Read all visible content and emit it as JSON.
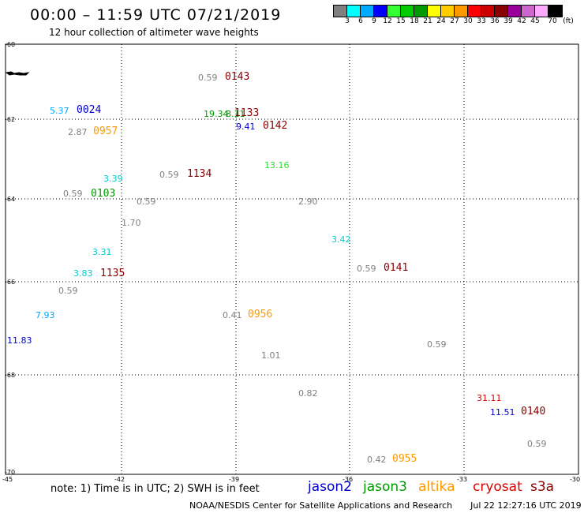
{
  "header": {
    "title": "00:00 – 11:59 UTC 07/21/2019",
    "subtitle": "12 hour collection of altimeter wave heights"
  },
  "color_scale": {
    "colors": [
      "#808080",
      "#00ffff",
      "#00aaff",
      "#0000ff",
      "#33ff33",
      "#00cc00",
      "#009900",
      "#ffff00",
      "#ffcc00",
      "#ff9900",
      "#ff0000",
      "#cc0000",
      "#880000",
      "#990099",
      "#cc66cc",
      "#ffaaff",
      "#000000"
    ],
    "labels": [
      "3",
      "6",
      "9",
      "12",
      "15",
      "18",
      "21",
      "24",
      "27",
      "30",
      "33",
      "36",
      "39",
      "42",
      "45",
      "70",
      "(ft)"
    ]
  },
  "axes": {
    "lat_labels": [
      "-60",
      "-62",
      "-64",
      "-66",
      "-68",
      "-70"
    ],
    "lon_labels": [
      "-45",
      "-42",
      "-39",
      "-36",
      "-33",
      "-30"
    ]
  },
  "observations": [
    {
      "text": "0.59",
      "color": "#808080"
    },
    {
      "text": "5.37",
      "color": "#00aaff"
    },
    {
      "text": "19.34",
      "color": "#009900"
    },
    {
      "text": "8.11",
      "color": "#009900"
    },
    {
      "text": "9.41",
      "color": "#0000cc"
    },
    {
      "text": "2.87",
      "color": "#808080"
    },
    {
      "text": "13.16",
      "color": "#33dd33"
    },
    {
      "text": "3.39",
      "color": "#00cccc"
    },
    {
      "text": "0.59",
      "color": "#808080"
    },
    {
      "text": "0.59",
      "color": "#808080"
    },
    {
      "text": "0.59",
      "color": "#808080"
    },
    {
      "text": "2.90",
      "color": "#808080"
    },
    {
      "text": "1.70",
      "color": "#808080"
    },
    {
      "text": "3.42",
      "color": "#00cccc"
    },
    {
      "text": "3.31",
      "color": "#00cccc"
    },
    {
      "text": "0.59",
      "color": "#808080"
    },
    {
      "text": "3.83",
      "color": "#00cccc"
    },
    {
      "text": "0.59",
      "color": "#808080"
    },
    {
      "text": "7.93",
      "color": "#00aaff"
    },
    {
      "text": "0.41",
      "color": "#808080"
    },
    {
      "text": "11.83",
      "color": "#0000cc"
    },
    {
      "text": "0.59",
      "color": "#808080"
    },
    {
      "text": "1.01",
      "color": "#808080"
    },
    {
      "text": "0.82",
      "color": "#808080"
    },
    {
      "text": "31.11",
      "color": "#dd0000"
    },
    {
      "text": "11.51",
      "color": "#0000cc"
    },
    {
      "text": "0.59",
      "color": "#808080"
    },
    {
      "text": "0.42",
      "color": "#808080"
    }
  ],
  "passes": [
    {
      "text": "0143",
      "color": "#880000"
    },
    {
      "text": "0024",
      "color": "#0000cc"
    },
    {
      "text": "1133",
      "color": "#880000"
    },
    {
      "text": "0142",
      "color": "#880000"
    },
    {
      "text": "0957",
      "color": "#ff9900"
    },
    {
      "text": "1134",
      "color": "#880000"
    },
    {
      "text": "0103",
      "color": "#009900"
    },
    {
      "text": "0141",
      "color": "#880000"
    },
    {
      "text": "1135",
      "color": "#880000"
    },
    {
      "text": "0956",
      "color": "#ff9900"
    },
    {
      "text": "0140",
      "color": "#880000"
    },
    {
      "text": "0955",
      "color": "#ff9900"
    }
  ],
  "note": "note: 1) Time is in UTC; 2) SWH is in feet",
  "legend": [
    {
      "label": "jason2",
      "color": "#0000cc"
    },
    {
      "label": "jason3",
      "color": "#009900"
    },
    {
      "label": "altika",
      "color": "#ff9900"
    },
    {
      "label": "cryosat",
      "color": "#dd0000"
    },
    {
      "label": "s3a",
      "color": "#880000"
    }
  ],
  "footer": {
    "credit": "NOAA/NESDIS Center for Satellite Applications and Research",
    "timestamp": "Jul 22 12:27:16 UTC 2019"
  }
}
